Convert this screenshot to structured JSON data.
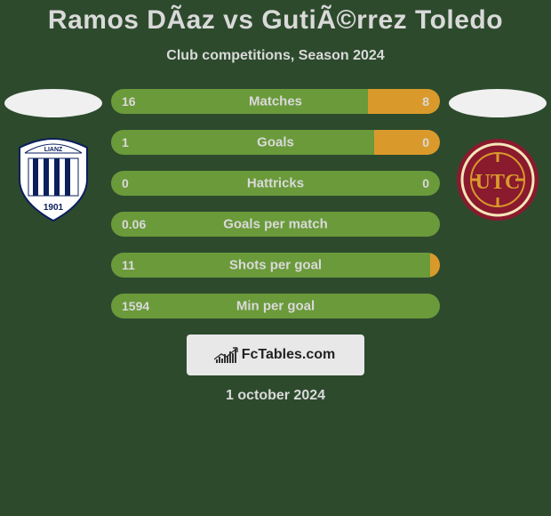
{
  "background_color": "#2d4a2d",
  "text_color": "#d9d9d9",
  "title_color": "#d9d9d9",
  "title": "Ramos DÃ­az vs GutiÃ©rrez Toledo",
  "subtitle": "Club competitions, Season 2024",
  "date": "1 october 2024",
  "watermark": {
    "text": "FcTables.com",
    "background": "#e8e8e8",
    "text_color": "#222222"
  },
  "player_left": {
    "avatar_bg": "#f0f0f0",
    "club": {
      "name": "Alianza Lima",
      "bg": "#ffffff",
      "accent": "#0a1f5c",
      "year": "1901"
    }
  },
  "player_right": {
    "avatar_bg": "#f0f0f0",
    "club": {
      "name": "UTC",
      "bg": "#8a1a2e",
      "accent": "#d9a84a",
      "ring": "#f5e6b8"
    }
  },
  "bars": {
    "left_color": "#6a9a3a",
    "right_color": "#d99a2b",
    "items": [
      {
        "label": "Matches",
        "left_val": "16",
        "right_val": "8",
        "left_pct": 78,
        "right_pct": 22
      },
      {
        "label": "Goals",
        "left_val": "1",
        "right_val": "0",
        "left_pct": 80,
        "right_pct": 20
      },
      {
        "label": "Hattricks",
        "left_val": "0",
        "right_val": "0",
        "left_pct": 100,
        "right_pct": 0
      },
      {
        "label": "Goals per match",
        "left_val": "0.06",
        "right_val": "",
        "left_pct": 100,
        "right_pct": 0
      },
      {
        "label": "Shots per goal",
        "left_val": "11",
        "right_val": "",
        "left_pct": 97,
        "right_pct": 3
      },
      {
        "label": "Min per goal",
        "left_val": "1594",
        "right_val": "",
        "left_pct": 100,
        "right_pct": 0
      }
    ]
  }
}
